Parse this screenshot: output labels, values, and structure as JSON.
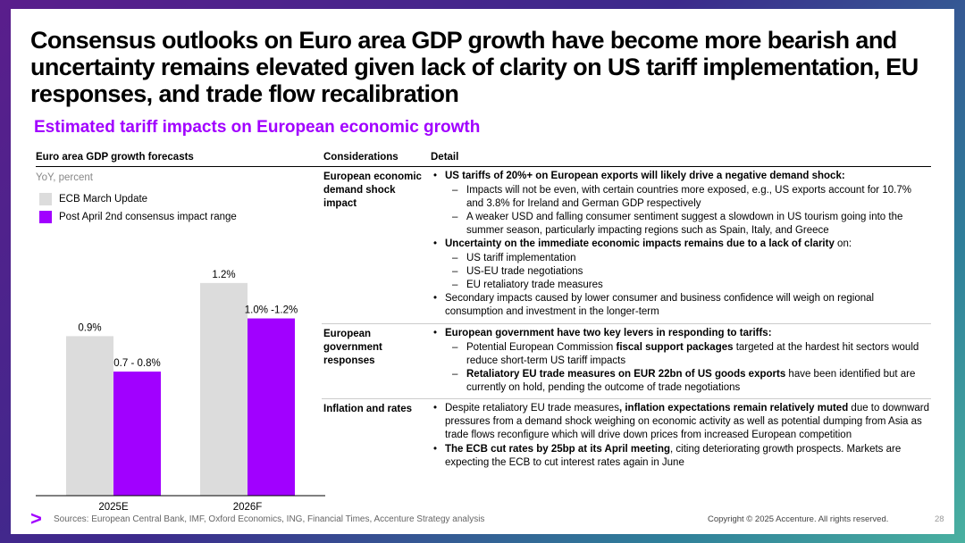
{
  "title": "Consensus outlooks on Euro area GDP growth have become more bearish and uncertainty remains elevated given lack of clarity on US tariff implementation, EU responses, and trade flow recalibration",
  "subtitle": "Estimated tariff impacts on European economic growth",
  "chart_section": {
    "heading": "Euro area GDP growth forecasts",
    "unit": "YoY, percent"
  },
  "chart_data": {
    "type": "bar",
    "categories": [
      "2025E",
      "2026F"
    ],
    "series": [
      {
        "name": "ECB March Update",
        "values": [
          0.9,
          1.2
        ],
        "labels": [
          "0.9%",
          "1.2%"
        ],
        "color": "#dcdcdc"
      },
      {
        "name": "Post April 2nd consensus impact range",
        "values": [
          0.7,
          1.0
        ],
        "labels": [
          "0.7 - 0.8%",
          "1.0% -1.2%"
        ],
        "color": "#a100ff"
      }
    ],
    "ylim": [
      0,
      1.3
    ]
  },
  "table": {
    "headers": {
      "considerations": "Considerations",
      "detail": "Detail"
    },
    "rows": [
      {
        "consideration": "European economic demand shock impact",
        "b1": {
          "bold": "US tariffs of 20%+ on European exports will likely drive a negative demand shock:"
        },
        "b1_subs": [
          "Impacts will not be even, with certain countries more exposed, e.g., US exports account for 10.7% and 3.8% for Ireland and German GDP respectively",
          "A weaker USD and falling consumer sentiment suggest a slowdown in US tourism going into the summer season, particularly impacting regions such as Spain, Italy, and Greece"
        ],
        "b2": {
          "bold": "Uncertainty on the immediate economic impacts remains due to a lack of clarity",
          "rest": " on:"
        },
        "b2_subs": [
          "US tariff implementation",
          "US-EU trade negotiations",
          "EU retaliatory trade measures"
        ],
        "b3": "Secondary impacts caused by lower consumer and business confidence will weigh on regional consumption and investment in the longer-term"
      },
      {
        "consideration": "European government responses",
        "b1": {
          "bold": "European government have two key levers in responding to tariffs:"
        },
        "sub1": {
          "pre": "Potential European Commission ",
          "bold": "fiscal support packages",
          "rest": " targeted at the hardest hit sectors would reduce short-term US tariff impacts"
        },
        "sub2": {
          "bold": "Retaliatory EU trade measures on EUR 22bn of US goods exports",
          "rest": " have been identified but are currently on hold, pending the outcome of trade negotiations"
        }
      },
      {
        "consideration": "Inflation and rates",
        "b1": {
          "pre": "Despite retaliatory EU trade measures",
          "bold": ", inflation expectations remain relatively muted",
          "rest": " due to downward pressures from a demand shock weighing on economic activity as well as potential dumping from Asia as trade flows reconfigure which will drive down prices from increased European competition"
        },
        "b2": {
          "bold": "The ECB cut rates  by 25bp at its April meeting",
          "rest": ", citing deteriorating growth prospects. Markets are expecting the ECB to cut interest rates again in June"
        }
      }
    ]
  },
  "footer": {
    "sources": "Sources: European Central Bank, IMF, Oxford Economics, ING, Financial Times, Accenture Strategy analysis",
    "copyright": "Copyright © 2025 Accenture. All rights reserved.",
    "page": "28",
    "logo_glyph": ">"
  }
}
